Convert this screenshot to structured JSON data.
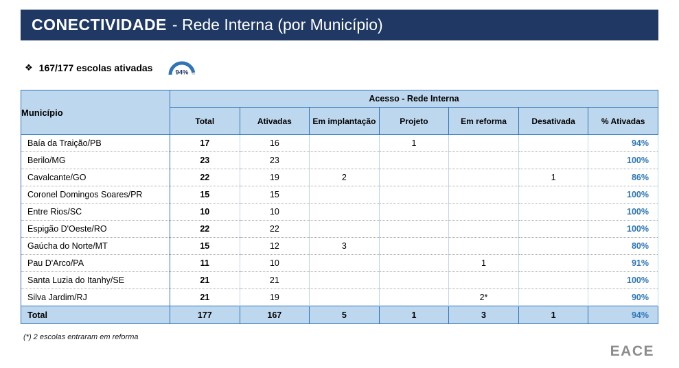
{
  "header": {
    "title_bold": "CONECTIVIDADE",
    "title_rest": "- Rede Interna (por Município)"
  },
  "summary": {
    "bullet": "❖",
    "text": "167/177 escolas ativadas",
    "gauge_value": "94%"
  },
  "table": {
    "municipio_header": "Município",
    "group_header": "Acesso - Rede Interna",
    "columns": [
      "Total",
      "Ativadas",
      "Em implantação",
      "Projeto",
      "Em reforma",
      "Desativada",
      "% Ativadas"
    ],
    "rows": [
      {
        "name": "Baía da Traição/PB",
        "values": [
          "17",
          "16",
          "",
          "1",
          "",
          "",
          "94%"
        ]
      },
      {
        "name": "Berilo/MG",
        "values": [
          "23",
          "23",
          "",
          "",
          "",
          "",
          "100%"
        ]
      },
      {
        "name": "Cavalcante/GO",
        "values": [
          "22",
          "19",
          "2",
          "",
          "",
          "1",
          "86%"
        ]
      },
      {
        "name": "Coronel Domingos Soares/PR",
        "values": [
          "15",
          "15",
          "",
          "",
          "",
          "",
          "100%"
        ]
      },
      {
        "name": "Entre Rios/SC",
        "values": [
          "10",
          "10",
          "",
          "",
          "",
          "",
          "100%"
        ]
      },
      {
        "name": "Espigão D'Oeste/RO",
        "values": [
          "22",
          "22",
          "",
          "",
          "",
          "",
          "100%"
        ]
      },
      {
        "name": "Gaúcha do Norte/MT",
        "values": [
          "15",
          "12",
          "3",
          "",
          "",
          "",
          "80%"
        ]
      },
      {
        "name": "Pau D'Arco/PA",
        "values": [
          "11",
          "10",
          "",
          "",
          "1",
          "",
          "91%"
        ]
      },
      {
        "name": "Santa Luzia do Itanhy/SE",
        "values": [
          "21",
          "21",
          "",
          "",
          "",
          "",
          "100%"
        ]
      },
      {
        "name": "Silva Jardim/RJ",
        "values": [
          "21",
          "19",
          "",
          "",
          "2*",
          "",
          "90%"
        ]
      }
    ],
    "total_row": {
      "name": "Total",
      "values": [
        "177",
        "167",
        "5",
        "1",
        "3",
        "1",
        "94%"
      ]
    }
  },
  "footnote": "(*) 2 escolas entraram em reforma",
  "logo": "EACE",
  "colors": {
    "title-bar-bg": "#1F3864",
    "title-text": "#FFFFFF",
    "header-bg": "#BDD7EE",
    "border-strong": "#2E75B6",
    "border-light": "#BDD7EE",
    "dotted": "#A6A6A6",
    "pct": "#2E75B6",
    "gauge-arc": "#2E75B6",
    "gauge-track": "#D9D9D9",
    "gauge-text": "#1F3864",
    "logo": "#8C8C8C",
    "text": "#000000"
  }
}
